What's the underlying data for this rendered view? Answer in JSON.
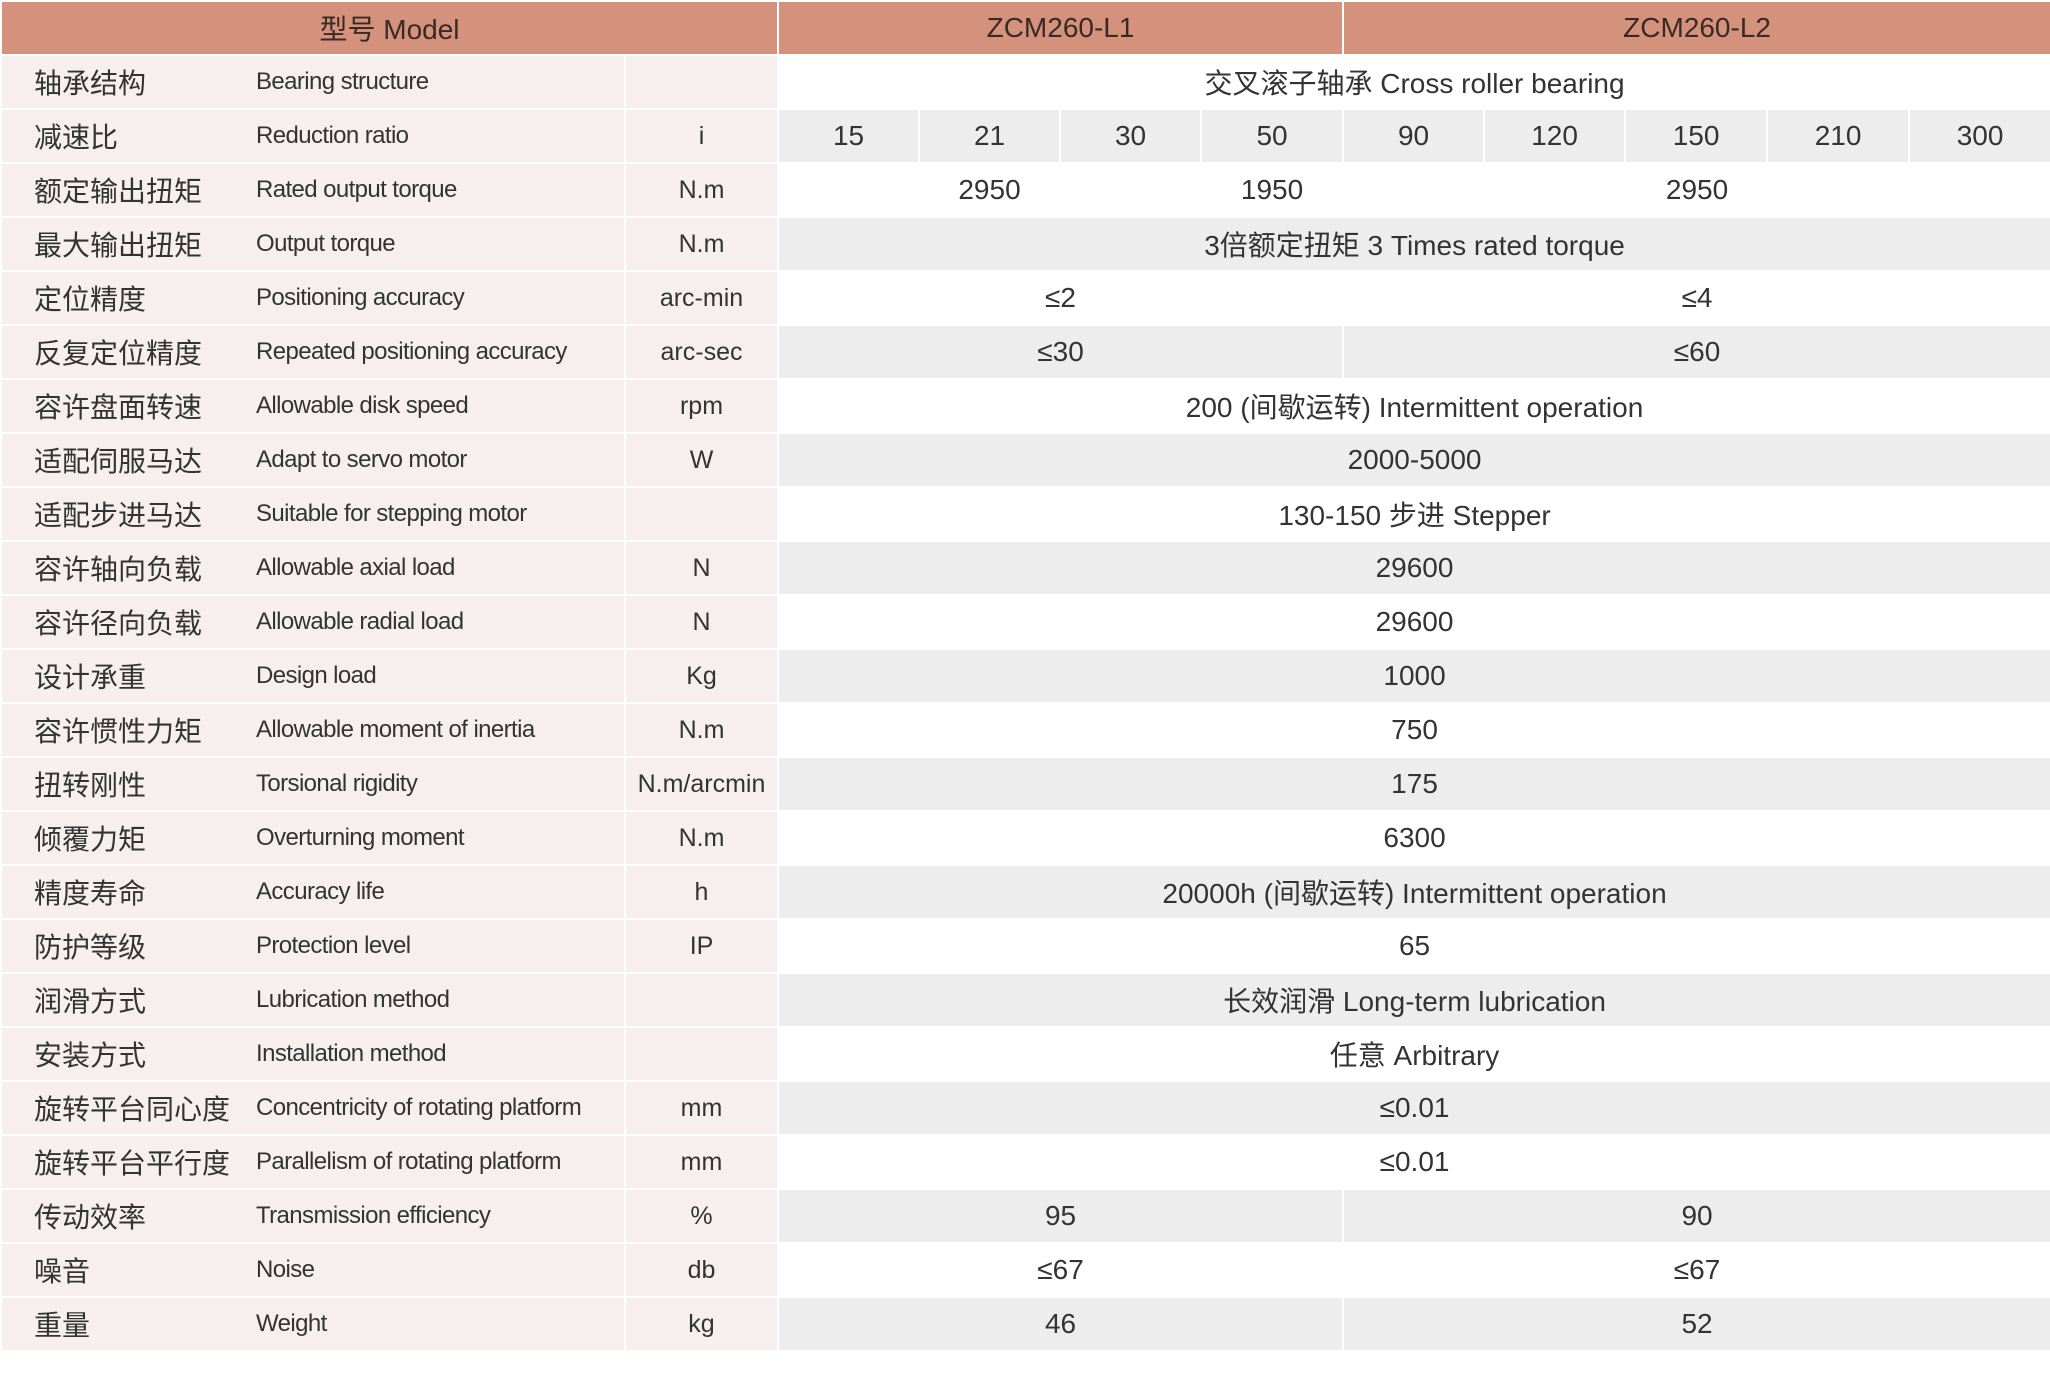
{
  "header": {
    "model_label": "型号 Model",
    "models": [
      "ZCM260-L1",
      "ZCM260-L2"
    ]
  },
  "colors": {
    "header": "#d4917c",
    "label_bg": "#f7efee",
    "alt_row": "#ededed"
  },
  "rows": [
    {
      "cn": "轴承结构",
      "en": "Bearing structure",
      "unit": "",
      "cells": [
        {
          "text": "交叉滚子轴承 Cross roller bearing",
          "span": 9
        }
      ]
    },
    {
      "cn": "减速比",
      "en": "Reduction ratio",
      "unit": "i",
      "cells": [
        {
          "text": "15",
          "span": 1
        },
        {
          "text": "21",
          "span": 1
        },
        {
          "text": "30",
          "span": 1
        },
        {
          "text": "50",
          "span": 1
        },
        {
          "text": "90",
          "span": 1
        },
        {
          "text": "120",
          "span": 1
        },
        {
          "text": "150",
          "span": 1
        },
        {
          "text": "210",
          "span": 1
        },
        {
          "text": "300",
          "span": 1
        }
      ]
    },
    {
      "cn": "额定输出扭矩",
      "en": "Rated output torque",
      "unit": "N.m",
      "cells": [
        {
          "text": "2950",
          "span": 3
        },
        {
          "text": "1950",
          "span": 1
        },
        {
          "text": "2950",
          "span": 5
        }
      ]
    },
    {
      "cn": "最大输出扭矩",
      "en": "Output torque",
      "unit": "N.m",
      "cells": [
        {
          "text": "3倍额定扭矩 3 Times rated torque",
          "span": 9
        }
      ]
    },
    {
      "cn": "定位精度",
      "en": "Positioning accuracy",
      "unit": "arc-min",
      "cells": [
        {
          "text": "≤2",
          "span": 4
        },
        {
          "text": "≤4",
          "span": 5
        }
      ]
    },
    {
      "cn": "反复定位精度",
      "en": "Repeated positioning accuracy",
      "unit": "arc-sec",
      "cells": [
        {
          "text": "≤30",
          "span": 4
        },
        {
          "text": "≤60",
          "span": 5
        }
      ]
    },
    {
      "cn": "容许盘面转速",
      "en": "Allowable disk speed",
      "unit": "rpm",
      "cells": [
        {
          "text": "200 (间歇运转) Intermittent operation",
          "span": 9
        }
      ]
    },
    {
      "cn": "适配伺服马达",
      "en": "Adapt to servo motor",
      "unit": "W",
      "cells": [
        {
          "text": "2000-5000",
          "span": 9
        }
      ]
    },
    {
      "cn": "适配步进马达",
      "en": "Suitable for stepping motor",
      "unit": "",
      "cells": [
        {
          "text": "130-150 步进 Stepper",
          "span": 9
        }
      ]
    },
    {
      "cn": "容许轴向负载",
      "en": "Allowable axial load",
      "unit": "N",
      "cells": [
        {
          "text": "29600",
          "span": 9
        }
      ]
    },
    {
      "cn": "容许径向负载",
      "en": "Allowable radial load",
      "unit": "N",
      "cells": [
        {
          "text": "29600",
          "span": 9
        }
      ]
    },
    {
      "cn": "设计承重",
      "en": "Design load",
      "unit": "Kg",
      "cells": [
        {
          "text": "1000",
          "span": 9
        }
      ]
    },
    {
      "cn": "容许惯性力矩",
      "en": "Allowable moment of inertia",
      "unit": "N.m",
      "cells": [
        {
          "text": "750",
          "span": 9
        }
      ]
    },
    {
      "cn": "扭转刚性",
      "en": "Torsional rigidity",
      "unit": "N.m/arcmin",
      "cells": [
        {
          "text": "175",
          "span": 9
        }
      ]
    },
    {
      "cn": "倾覆力矩",
      "en": "Overturning moment",
      "unit": "N.m",
      "cells": [
        {
          "text": "6300",
          "span": 9
        }
      ]
    },
    {
      "cn": "精度寿命",
      "en": "Accuracy life",
      "unit": "h",
      "cells": [
        {
          "text": "20000h (间歇运转) Intermittent operation",
          "span": 9
        }
      ]
    },
    {
      "cn": "防护等级",
      "en": "Protection level",
      "unit": "IP",
      "cells": [
        {
          "text": "65",
          "span": 9
        }
      ]
    },
    {
      "cn": "润滑方式",
      "en": "Lubrication method",
      "unit": "",
      "cells": [
        {
          "text": "长效润滑 Long-term lubrication",
          "span": 9
        }
      ]
    },
    {
      "cn": "安装方式",
      "en": "Installation method",
      "unit": "",
      "cells": [
        {
          "text": "任意 Arbitrary",
          "span": 9
        }
      ]
    },
    {
      "cn": "旋转平台同心度",
      "en": "Concentricity of rotating platform",
      "unit": "mm",
      "cells": [
        {
          "text": "≤0.01",
          "span": 9
        }
      ]
    },
    {
      "cn": "旋转平台平行度",
      "en": "Parallelism of rotating platform",
      "unit": "mm",
      "cells": [
        {
          "text": "≤0.01",
          "span": 9
        }
      ]
    },
    {
      "cn": "传动效率",
      "en": "Transmission efficiency",
      "unit": "%",
      "cells": [
        {
          "text": "95",
          "span": 4
        },
        {
          "text": "90",
          "span": 5
        }
      ]
    },
    {
      "cn": "噪音",
      "en": "Noise",
      "unit": "db",
      "cells": [
        {
          "text": "≤67",
          "span": 4
        },
        {
          "text": "≤67",
          "span": 5
        }
      ]
    },
    {
      "cn": "重量",
      "en": "Weight",
      "unit": "kg",
      "cells": [
        {
          "text": "46",
          "span": 4
        },
        {
          "text": "52",
          "span": 5
        }
      ]
    }
  ]
}
